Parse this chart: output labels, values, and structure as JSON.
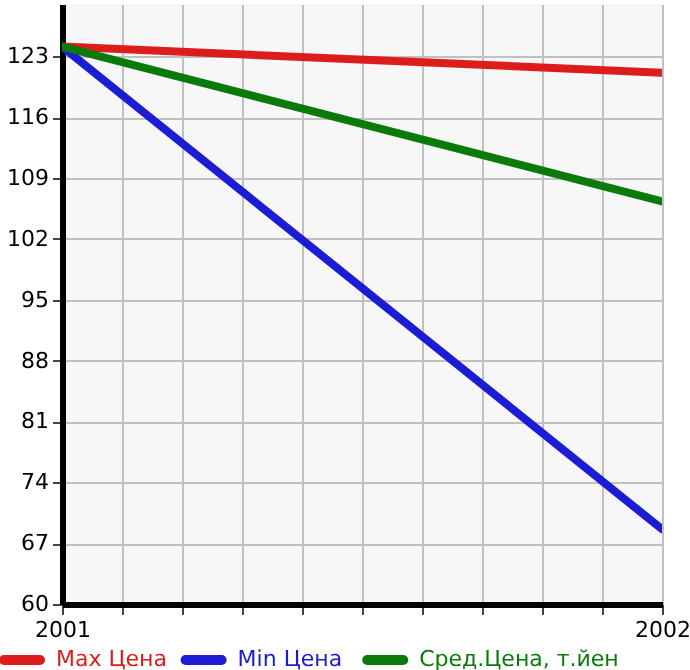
{
  "chart_data": {
    "type": "line",
    "x": [
      2001,
      2002
    ],
    "series": [
      {
        "name": "Max Цена",
        "color": "#dd1c1c",
        "values": [
          124.1,
          121.1
        ]
      },
      {
        "name": "Min Цена",
        "color": "#1c1cd4",
        "values": [
          124.1,
          68.6
        ]
      },
      {
        "name": "Сред.Цена, т.йен",
        "color": "#0a7a0a",
        "values": [
          124.1,
          106.3
        ]
      }
    ],
    "xlim": [
      2001,
      2002
    ],
    "xticks": [
      2001,
      {
        "value": 2001.1,
        "label": null
      },
      {
        "value": 2001.2,
        "label": null
      },
      {
        "value": 2001.3,
        "label": null
      },
      {
        "value": 2001.4,
        "label": null
      },
      {
        "value": 2001.5,
        "label": null
      },
      {
        "value": 2001.6,
        "label": null
      },
      {
        "value": 2001.7,
        "label": null
      },
      {
        "value": 2001.8,
        "label": null
      },
      {
        "value": 2001.9,
        "label": null
      },
      2002
    ],
    "ylim": [
      60,
      129
    ],
    "yticks": [
      60,
      67,
      74,
      81,
      88,
      95,
      102,
      109,
      116,
      123
    ],
    "grid": true,
    "legend": "bottom",
    "marker": "none",
    "line_style": "solid"
  }
}
